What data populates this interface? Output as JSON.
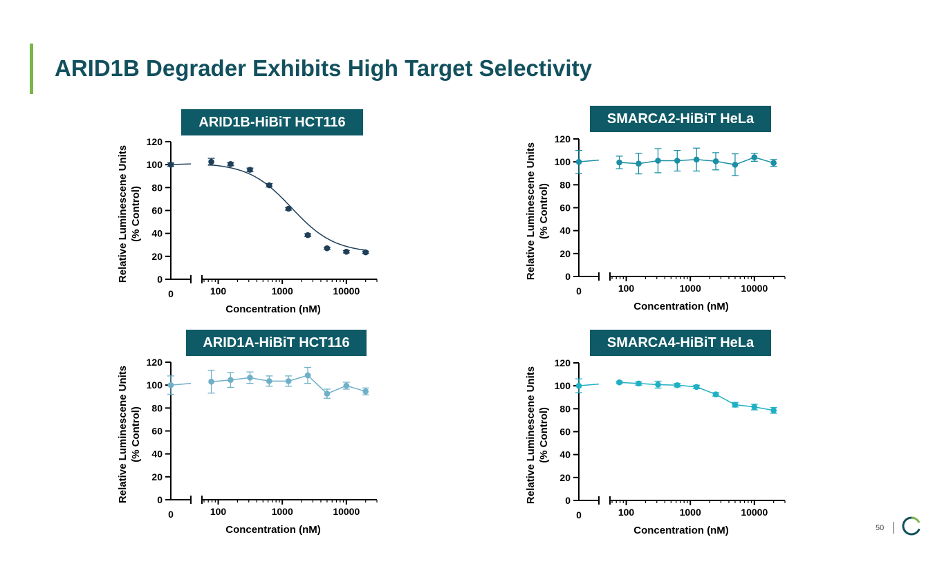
{
  "page": {
    "title": "ARID1B Degrader Exhibits High Target Selectivity",
    "page_number": "50",
    "accent_color": "#7ab648",
    "title_color": "#12505e",
    "label_bg_color": "#0e5a66",
    "logo_icon": "ring-logo-icon"
  },
  "chart_data": [
    {
      "id": "arid1b",
      "type": "line",
      "title": "ARID1B-HiBiT HCT116",
      "xlabel": "Concentration (nM)",
      "ylabel": [
        "Relative Luminescene Units",
        "(% Control)"
      ],
      "xscale": "log",
      "xlim": [
        60,
        30000
      ],
      "ylim": [
        0,
        120
      ],
      "yticks": [
        0,
        20,
        40,
        60,
        80,
        100,
        120
      ],
      "xtick_labels": [
        "100",
        "1000",
        "10000"
      ],
      "control_tick_label": "0",
      "color": "#1e3f5a",
      "fit": "sigmoid",
      "fit_params": {
        "top": 101.5,
        "bottom": 23,
        "ic50": 1400,
        "hill": 1.3
      },
      "control": {
        "y": 100,
        "err": 1.5
      },
      "x": [
        78,
        156,
        313,
        625,
        1250,
        2500,
        5000,
        10000,
        20000
      ],
      "y": [
        102.5,
        100.5,
        95.5,
        82,
        61.5,
        38.5,
        27,
        24,
        23.5
      ],
      "err": [
        3,
        1.5,
        1.5,
        1.5,
        1.2,
        1.2,
        1,
        1,
        1
      ]
    },
    {
      "id": "smarca2",
      "type": "line",
      "title": "SMARCA2-HiBiT HeLa",
      "xlabel": "Concentration (nM)",
      "ylabel": [
        "Relative Luminescene Units",
        "(% Control)"
      ],
      "xscale": "log",
      "xlim": [
        60,
        30000
      ],
      "ylim": [
        0,
        120
      ],
      "yticks": [
        0,
        20,
        40,
        60,
        80,
        100,
        120
      ],
      "xtick_labels": [
        "100",
        "1000",
        "10000"
      ],
      "control_tick_label": "0",
      "color": "#1a8fa5",
      "fit": "connect",
      "control": {
        "y": 100,
        "err": 10
      },
      "x": [
        78,
        156,
        313,
        625,
        1250,
        2500,
        5000,
        10000,
        20000
      ],
      "y": [
        99.5,
        98.5,
        101,
        101,
        102,
        100.5,
        97.5,
        104,
        99
      ],
      "err": [
        5.5,
        9,
        10.5,
        9,
        10,
        7.5,
        9.5,
        3.5,
        3
      ]
    },
    {
      "id": "arid1a",
      "type": "line",
      "title": "ARID1A-HiBiT HCT116",
      "xlabel": "Concentration (nM)",
      "ylabel": [
        "Relative Luminescene Units",
        "(% Control)"
      ],
      "xscale": "log",
      "xlim": [
        60,
        30000
      ],
      "ylim": [
        0,
        120
      ],
      "yticks": [
        0,
        20,
        40,
        60,
        80,
        100,
        120
      ],
      "xtick_labels": [
        "100",
        "1000",
        "10000"
      ],
      "control_tick_label": "0",
      "color": "#6fb0c8",
      "fit": "connect",
      "control": {
        "y": 100,
        "err": 8
      },
      "x": [
        78,
        156,
        313,
        625,
        1250,
        2500,
        5000,
        10000,
        20000
      ],
      "y": [
        103,
        104.5,
        106.5,
        103.5,
        103.5,
        108.5,
        92.5,
        99.5,
        94.5
      ],
      "err": [
        10,
        6.5,
        5,
        4.5,
        4.5,
        7,
        4,
        3,
        3
      ]
    },
    {
      "id": "smarca4",
      "type": "line",
      "title": "SMARCA4-HiBiT HeLa",
      "xlabel": "Concentration (nM)",
      "ylabel": [
        "Relative Luminescene Units",
        "(% Control)"
      ],
      "xscale": "log",
      "xlim": [
        60,
        30000
      ],
      "ylim": [
        0,
        120
      ],
      "yticks": [
        0,
        20,
        40,
        60,
        80,
        100,
        120
      ],
      "xtick_labels": [
        "100",
        "1000",
        "10000"
      ],
      "control_tick_label": "0",
      "color": "#1fb0c4",
      "fit": "connect",
      "control": {
        "y": 100,
        "err": 6
      },
      "x": [
        78,
        156,
        313,
        625,
        1250,
        2500,
        5000,
        10000,
        20000
      ],
      "y": [
        103,
        102,
        101,
        100.5,
        99,
        92.5,
        83.5,
        81.5,
        78.5
      ],
      "err": [
        1,
        1.5,
        3,
        1.5,
        1.5,
        1.5,
        2,
        2.5,
        2.5
      ]
    }
  ]
}
